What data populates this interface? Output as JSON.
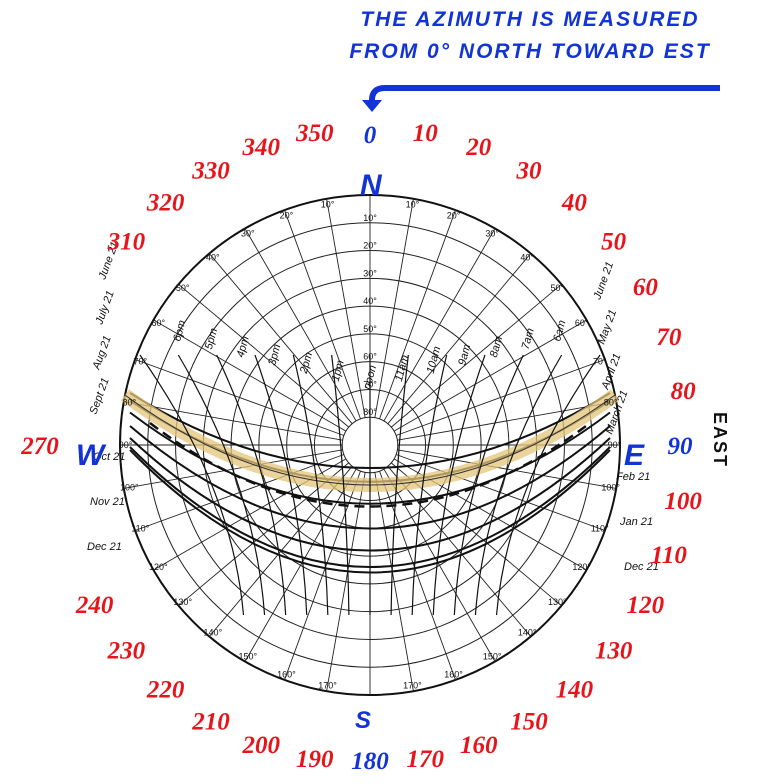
{
  "note": {
    "line1": "THE AZIMUTH IS MEASURED",
    "line2": "FROM 0° NORTH TOWARD EST",
    "color": "#1233d6"
  },
  "colors": {
    "azimuth_red": "#e8141b",
    "azimuth_blue": "#1233d6",
    "highlight": "#e3c57a"
  },
  "cardinals": {
    "north": "N",
    "south": "S",
    "east": "E",
    "west": "W",
    "east_side": "EAST"
  },
  "azimuths": [
    {
      "label": "0",
      "deg": 0,
      "blue": true
    },
    {
      "label": "10",
      "deg": 10
    },
    {
      "label": "20",
      "deg": 20
    },
    {
      "label": "30",
      "deg": 30
    },
    {
      "label": "40",
      "deg": 40
    },
    {
      "label": "50",
      "deg": 50
    },
    {
      "label": "60",
      "deg": 60
    },
    {
      "label": "70",
      "deg": 70
    },
    {
      "label": "80",
      "deg": 80
    },
    {
      "label": "90",
      "deg": 90,
      "blue": true
    },
    {
      "label": "100",
      "deg": 100
    },
    {
      "label": "110",
      "deg": 110
    },
    {
      "label": "120",
      "deg": 120
    },
    {
      "label": "130",
      "deg": 130
    },
    {
      "label": "140",
      "deg": 140
    },
    {
      "label": "150",
      "deg": 150
    },
    {
      "label": "160",
      "deg": 160
    },
    {
      "label": "170",
      "deg": 170
    },
    {
      "label": "180",
      "deg": 180,
      "blue": true
    },
    {
      "label": "190",
      "deg": 190
    },
    {
      "label": "200",
      "deg": 200
    },
    {
      "label": "210",
      "deg": 210
    },
    {
      "label": "220",
      "deg": 220
    },
    {
      "label": "230",
      "deg": 230
    },
    {
      "label": "240",
      "deg": 240
    },
    {
      "label": "270",
      "deg": 270
    },
    {
      "label": "310",
      "deg": 310
    },
    {
      "label": "320",
      "deg": 320
    },
    {
      "label": "330",
      "deg": 330
    },
    {
      "label": "340",
      "deg": 340
    },
    {
      "label": "350",
      "deg": 350
    }
  ],
  "inner_ticks": [
    "10°",
    "20°",
    "30°",
    "40°",
    "50°",
    "60°",
    "70°",
    "80°",
    "90°",
    "100°",
    "110°",
    "120°",
    "130°",
    "140°",
    "150°",
    "160°",
    "170°"
  ],
  "altitude_ticks": [
    "10°",
    "20°",
    "30°",
    "40°",
    "50°",
    "60°",
    "70°",
    "80°"
  ],
  "hours": [
    "6pm",
    "5pm",
    "4pm",
    "3pm",
    "2pm",
    "1pm",
    "noon",
    "11am",
    "10am",
    "9am",
    "8am",
    "7am",
    "6am"
  ],
  "dates_left": [
    "June 21",
    "July 21",
    "Aug 21",
    "Sept 21",
    "Oct 21",
    "Nov 21",
    "Dec 21"
  ],
  "dates_right": [
    "June 21",
    "May 21",
    "April 21",
    "March 21",
    "Feb 21",
    "Jan 21",
    "Dec 21"
  ]
}
